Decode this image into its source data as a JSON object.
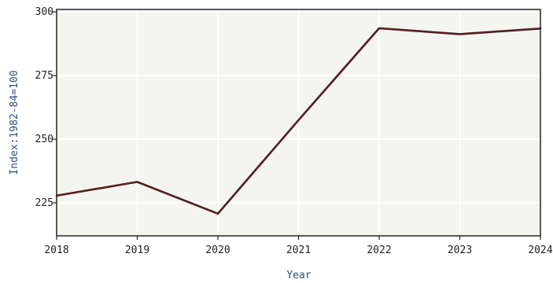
{
  "chart_data": {
    "type": "line",
    "title": "",
    "xlabel": "Year",
    "ylabel": "Index:1982-84=100",
    "x": [
      2018,
      2019,
      2020,
      2021,
      2022,
      2023,
      2024
    ],
    "x_tick_labels": [
      "2018",
      "2019",
      "2020",
      "2021",
      "2022",
      "2023",
      "2024"
    ],
    "y_ticks": [
      225,
      250,
      275,
      300
    ],
    "y_tick_labels": [
      "225",
      "250",
      "275",
      "300"
    ],
    "xlim": [
      2018,
      2024
    ],
    "ylim": [
      212,
      301
    ],
    "grid": true,
    "series": [
      {
        "values": [
          227.8,
          233.2,
          220.7,
          257.5,
          293.6,
          291.3,
          293.5
        ],
        "color": "#8b1a1a"
      }
    ]
  }
}
